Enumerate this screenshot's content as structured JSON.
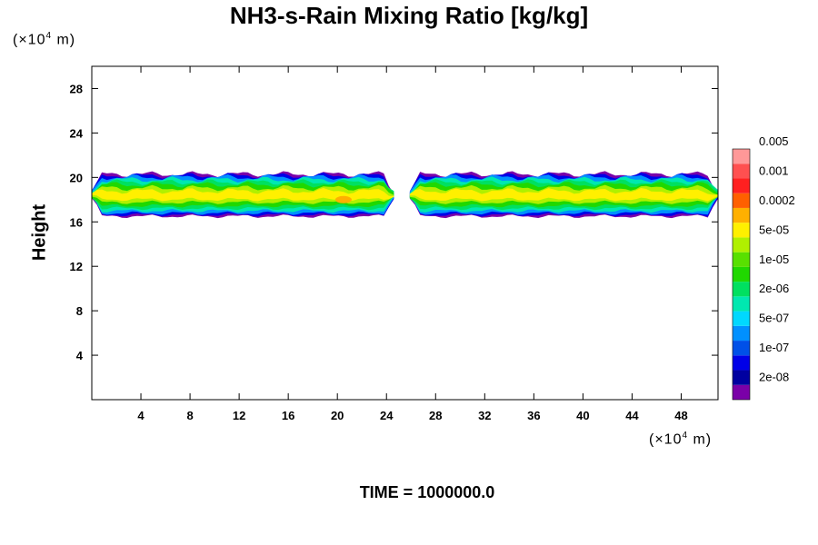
{
  "chart_data": {
    "type": "heatmap",
    "title": "NH3-s-Rain Mixing Ratio [kg/kg]",
    "xlabel": "",
    "ylabel": "Height",
    "x_unit_base": "(×10",
    "x_unit_exp": "4",
    "x_unit_tail": " m)",
    "y_unit_base": "(×10",
    "y_unit_exp": "4",
    "y_unit_tail": " m)",
    "xlim": [
      0,
      51
    ],
    "ylim": [
      0,
      30
    ],
    "x_ticks": [
      4,
      8,
      12,
      16,
      20,
      24,
      28,
      32,
      36,
      40,
      44,
      48
    ],
    "y_ticks": [
      4,
      8,
      12,
      16,
      20,
      24,
      28
    ],
    "band": {
      "y_min": 16.5,
      "y_max": 20.3,
      "gap_x": [
        24.6,
        25.9
      ],
      "hot_spot_x": 20.5,
      "hot_spot_y": 18.0
    },
    "colorbar": {
      "colors": [
        "#7a00a8",
        "#0000a0",
        "#0000e8",
        "#0050e8",
        "#0090ff",
        "#00d8ff",
        "#00e8b0",
        "#00e060",
        "#20d800",
        "#58e000",
        "#b0f000",
        "#fff000",
        "#ffb000",
        "#ff6000",
        "#ff2020",
        "#ff5050",
        "#ff9898"
      ],
      "labels": [
        "2e-08",
        "1e-07",
        "5e-07",
        "2e-06",
        "1e-05",
        "5e-05",
        "0.0002",
        "0.001",
        "0.005"
      ]
    },
    "footer": "TIME = 1000000.0"
  }
}
